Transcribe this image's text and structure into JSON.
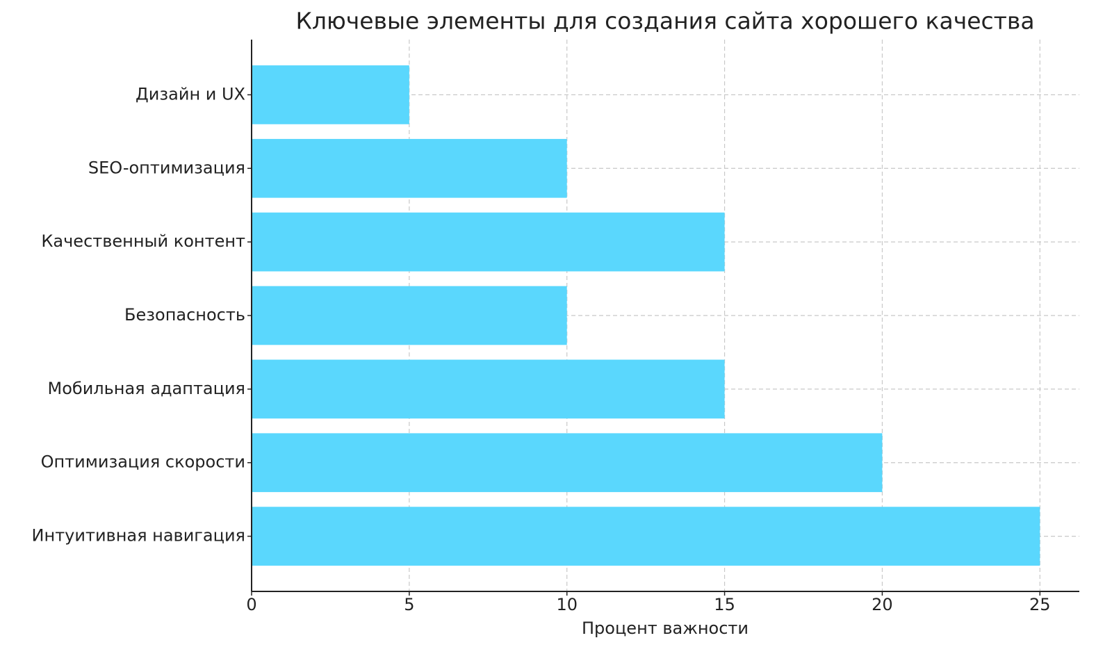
{
  "chart_data": {
    "type": "barh",
    "title": "Ключевые элементы для создания сайта хорошего качества",
    "x_label": "Процент важности",
    "categories": [
      "Интуитивная навигация",
      "Оптимизация скорости",
      "Мобильная адаптация",
      "Безопасность",
      "Качественный контент",
      "SEO-оптимизация",
      "Дизайн и UX"
    ],
    "values": [
      25,
      20,
      15,
      10,
      15,
      10,
      5
    ],
    "color": "#5ad7fd",
    "xlim": [
      0,
      26.25
    ],
    "xticks": [
      0,
      5,
      10,
      15,
      20,
      25
    ],
    "grid": true
  }
}
